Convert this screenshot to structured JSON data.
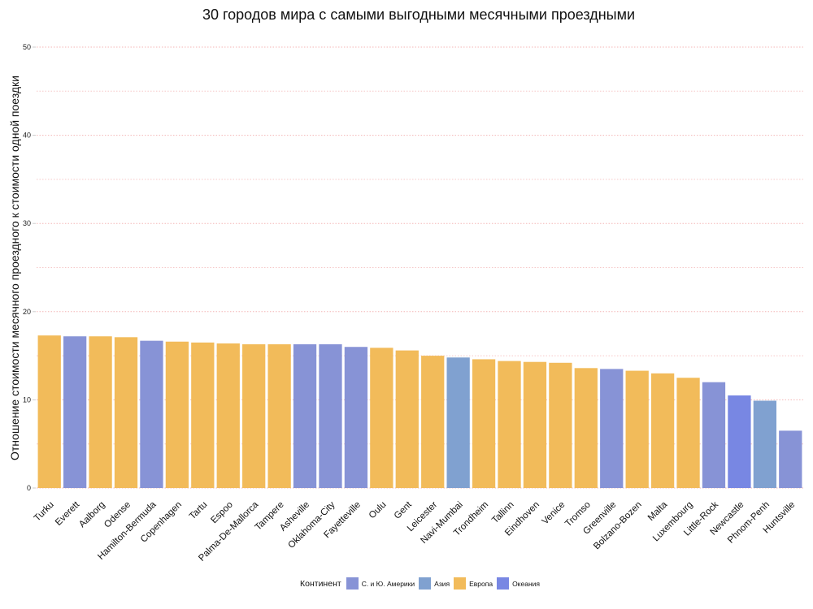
{
  "chart_data": {
    "type": "bar",
    "title": "30 городов мира с самыми выгодными месячными проездными",
    "xlabel": "",
    "ylabel": "Отношение стоимости месячного проездного к стоимости одной поездки",
    "ylim": [
      0,
      50
    ],
    "yticks": [
      "0",
      "10",
      "20",
      "30",
      "40",
      "50"
    ],
    "grid": true,
    "legend_title": "Континент",
    "legend_placement": "bottom",
    "legend": [
      {
        "key": "americas",
        "label": "С. и Ю. Америки",
        "color": "#8793d6"
      },
      {
        "key": "asia",
        "label": "Азия",
        "color": "#80a1d0"
      },
      {
        "key": "europe",
        "label": "Европа",
        "color": "#f2bb5a"
      },
      {
        "key": "oceania",
        "label": "Океания",
        "color": "#7887e3"
      }
    ],
    "categories": [
      "Turku",
      "Everett",
      "Aalborg",
      "Odense",
      "Hamilton-Bermuda",
      "Copenhagen",
      "Tartu",
      "Espoo",
      "Palma-De-Mallorca",
      "Tampere",
      "Asheville",
      "Oklahoma-City",
      "Fayetteville",
      "Oulu",
      "Gent",
      "Leicester",
      "Navi-Mumbai",
      "Trondheim",
      "Tallinn",
      "Eindhoven",
      "Venice",
      "Tromso",
      "Greenville",
      "Bolzano-Bozen",
      "Malta",
      "Luxembourg",
      "Little-Rock",
      "Newcastle",
      "Phnom-Penh",
      "Huntsville"
    ],
    "values": [
      17.3,
      17.2,
      17.2,
      17.1,
      16.7,
      16.6,
      16.5,
      16.4,
      16.3,
      16.3,
      16.3,
      16.3,
      16.0,
      15.9,
      15.6,
      15.0,
      14.8,
      14.6,
      14.4,
      14.3,
      14.2,
      13.6,
      13.5,
      13.3,
      13.0,
      12.5,
      12.0,
      10.5,
      9.9,
      6.5
    ],
    "continent": [
      "europe",
      "americas",
      "europe",
      "europe",
      "americas",
      "europe",
      "europe",
      "europe",
      "europe",
      "europe",
      "americas",
      "americas",
      "americas",
      "europe",
      "europe",
      "europe",
      "asia",
      "europe",
      "europe",
      "europe",
      "europe",
      "europe",
      "americas",
      "europe",
      "europe",
      "europe",
      "americas",
      "oceania",
      "asia",
      "americas"
    ]
  }
}
